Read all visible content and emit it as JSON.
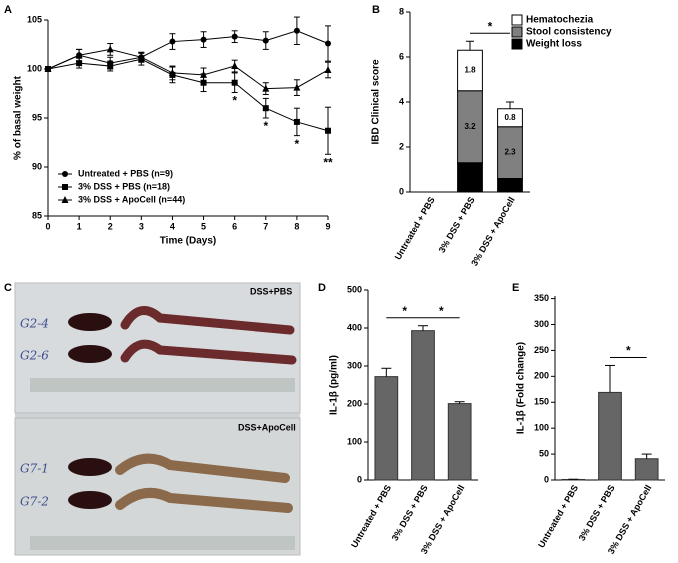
{
  "chart_data": [
    {
      "type": "line",
      "panel_label": "A",
      "xlabel": "Time (Days)",
      "ylabel": "% of basal weight",
      "x": [
        0,
        1,
        2,
        3,
        4,
        5,
        6,
        7,
        8,
        9
      ],
      "xlim": [
        0,
        9
      ],
      "xticks": [
        0,
        1,
        2,
        3,
        4,
        5,
        6,
        7,
        8,
        9
      ],
      "ylim": [
        85,
        105
      ],
      "yticks": [
        85,
        90,
        95,
        100,
        105
      ],
      "legend": "lower left",
      "series": [
        {
          "name": "Untreated + PBS (n=9)",
          "color": "#000000",
          "marker": "circle",
          "values": [
            100,
            101.4,
            100.6,
            101.2,
            102.8,
            103.0,
            103.3,
            102.9,
            103.9,
            102.6
          ],
          "errors": [
            0.2,
            0.6,
            0.6,
            0.5,
            0.8,
            0.8,
            0.6,
            0.9,
            1.4,
            1.8
          ]
        },
        {
          "name": "3% DSS + PBS (n=18)",
          "color": "#000000",
          "marker": "square",
          "values": [
            100,
            100.6,
            100.3,
            101.0,
            99.4,
            98.6,
            98.6,
            96.0,
            94.6,
            93.7
          ],
          "errors": [
            0.2,
            0.5,
            0.5,
            0.6,
            0.8,
            0.9,
            1.0,
            1.0,
            1.4,
            2.4
          ]
        },
        {
          "name": "3% DSS + ApoCell (n=44)",
          "color": "#000000",
          "marker": "triangle",
          "values": [
            100,
            101.4,
            102.0,
            101.2,
            99.6,
            99.4,
            100.3,
            98.0,
            98.1,
            99.9
          ],
          "errors": [
            0.2,
            0.6,
            0.6,
            0.5,
            0.7,
            0.7,
            0.6,
            0.6,
            0.8,
            0.8
          ]
        }
      ],
      "annotations": [
        {
          "text": "*",
          "x": 6
        },
        {
          "text": "*",
          "x": 7
        },
        {
          "text": "*",
          "x": 8
        },
        {
          "text": "**",
          "x": 9
        }
      ]
    },
    {
      "type": "stacked_bar",
      "panel_label": "B",
      "ylabel": "IBD Clinical score",
      "categories": [
        "Untreated + PBS",
        "3% DSS + PBS",
        "3% DSS + ApoCell"
      ],
      "ylim": [
        0,
        8
      ],
      "yticks": [
        0,
        2,
        4,
        6,
        8
      ],
      "legend": "upper right",
      "series": [
        {
          "name": "Weight loss",
          "color": "#000000",
          "values": [
            0,
            1.3,
            0.6
          ],
          "errors": [
            0,
            0.3,
            0.15
          ]
        },
        {
          "name": "Stool consistency",
          "color": "#808080",
          "values": [
            0,
            3.2,
            2.3
          ],
          "errors": [
            0,
            0.2,
            0.2
          ]
        },
        {
          "name": "Hematochezia",
          "color": "#ffffff",
          "values": [
            0,
            1.8,
            0.8
          ],
          "errors": [
            0,
            0.4,
            0.3
          ]
        }
      ],
      "annotations": [
        {
          "text": "*",
          "between": [
            1,
            2
          ]
        }
      ]
    },
    {
      "type": "bar",
      "panel_label": "D",
      "ylabel": "IL-1β (pg/ml)",
      "categories": [
        "Untreated + PBS",
        "3% DSS + PBS",
        "3% DSS + ApoCell"
      ],
      "ylim": [
        0,
        500
      ],
      "yticks": [
        0,
        100,
        200,
        300,
        400,
        500
      ],
      "color": "#666666",
      "values": [
        272,
        393,
        201
      ],
      "errors": [
        22,
        13,
        5
      ],
      "annotations": [
        {
          "text": "*",
          "between": [
            0,
            1
          ]
        },
        {
          "text": "*",
          "between": [
            1,
            2
          ]
        }
      ]
    },
    {
      "type": "bar",
      "panel_label": "E",
      "ylabel": "IL-1β (Fold change)",
      "categories": [
        "Untreated + PBS",
        "3% DSS + PBS",
        "3% DSS + ApoCell"
      ],
      "ylim": [
        0,
        355
      ],
      "yticks": [
        0,
        50,
        100,
        150,
        200,
        250,
        300,
        350
      ],
      "color": "#666666",
      "values": [
        1,
        169,
        41
      ],
      "errors": [
        0.5,
        52,
        9
      ],
      "annotations": [
        {
          "text": "*",
          "between": [
            1,
            2
          ]
        }
      ]
    }
  ],
  "photo": {
    "panel_label": "C",
    "top_label": "DSS+PBS",
    "bottom_label": "DSS+ApoCell",
    "sample_labels": [
      "G2-4",
      "G2-6",
      "G7-1",
      "G7-2"
    ]
  }
}
